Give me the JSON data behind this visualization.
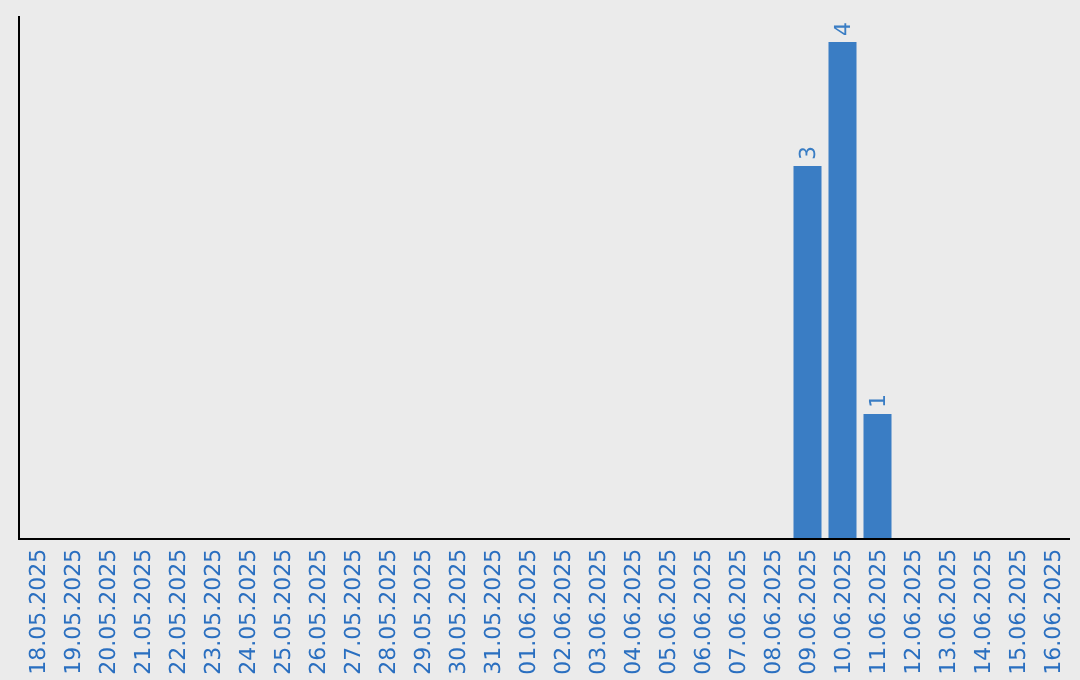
{
  "chart_data": {
    "type": "bar",
    "categories": [
      "18.05.2025",
      "19.05.2025",
      "20.05.2025",
      "21.05.2025",
      "22.05.2025",
      "23.05.2025",
      "24.05.2025",
      "25.05.2025",
      "26.05.2025",
      "27.05.2025",
      "28.05.2025",
      "29.05.2025",
      "30.05.2025",
      "31.05.2025",
      "01.06.2025",
      "02.06.2025",
      "03.06.2025",
      "04.06.2025",
      "05.06.2025",
      "06.06.2025",
      "07.06.2025",
      "08.06.2025",
      "09.06.2025",
      "10.06.2025",
      "11.06.2025",
      "12.06.2025",
      "13.06.2025",
      "14.06.2025",
      "15.06.2025",
      "16.06.2025"
    ],
    "values": [
      null,
      null,
      null,
      null,
      null,
      null,
      null,
      null,
      null,
      null,
      null,
      null,
      null,
      null,
      null,
      null,
      null,
      null,
      null,
      null,
      null,
      null,
      3,
      4,
      1,
      null,
      null,
      null,
      null,
      null
    ],
    "data_labels": true,
    "color": "#3a7dc4",
    "grid": false,
    "legend": false
  }
}
